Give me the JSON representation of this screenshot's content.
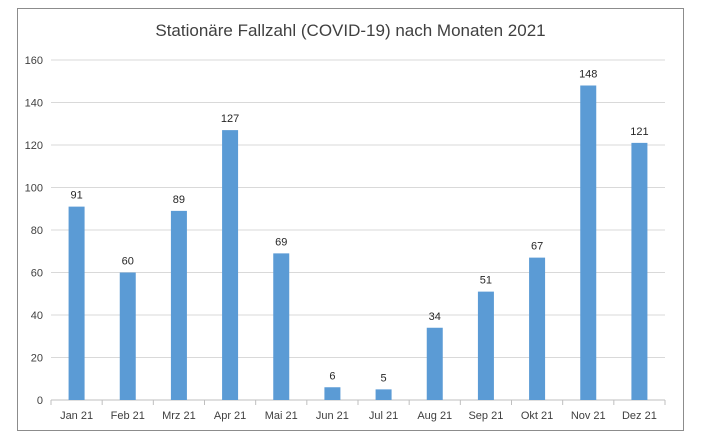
{
  "chart_data": {
    "type": "bar",
    "title": "Stationäre Fallzahl (COVID-19) nach Monaten 2021",
    "categories": [
      "Jan 21",
      "Feb 21",
      "Mrz 21",
      "Apr 21",
      "Mai 21",
      "Jun 21",
      "Jul 21",
      "Aug 21",
      "Sep 21",
      "Okt 21",
      "Nov 21",
      "Dez 21"
    ],
    "values": [
      91,
      60,
      89,
      127,
      69,
      6,
      5,
      34,
      51,
      67,
      148,
      121
    ],
    "xlabel": "",
    "ylabel": "",
    "ylim": [
      0,
      160
    ],
    "yticks": [
      0,
      20,
      40,
      60,
      80,
      100,
      120,
      140,
      160
    ],
    "grid": true,
    "legend": "none",
    "data_labels": true,
    "bar_color": "#5b9bd5"
  }
}
